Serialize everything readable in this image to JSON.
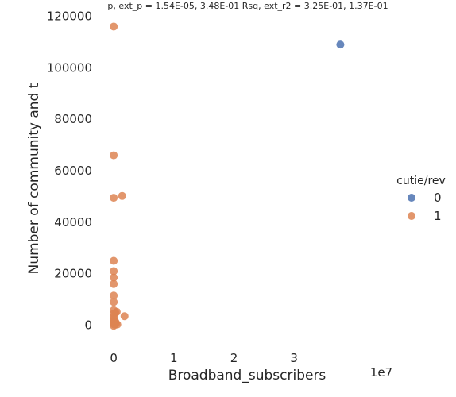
{
  "chart_data": {
    "type": "scatter",
    "title": "p, ext_p = 1.54E-05, 3.48E-01 Rsq, ext_r2 = 3.25E-01, 1.37E-01",
    "xlabel": "Broadband_subscribers",
    "ylabel": "Number of community and t",
    "x_offset_label": "1e7",
    "xlim": [
      -0.2,
      4.65
    ],
    "ylim": [
      -10000,
      122000
    ],
    "x_ticks": [
      0,
      1,
      2,
      3
    ],
    "x_tick_labels": [
      "0",
      "1",
      "2",
      "3"
    ],
    "y_ticks": [
      0,
      20000,
      40000,
      60000,
      80000,
      100000,
      120000
    ],
    "y_tick_labels": [
      "0",
      "20000",
      "40000",
      "60000",
      "80000",
      "100000",
      "120000"
    ],
    "grid": false,
    "legend": {
      "title": "cutie/rev",
      "placement": "right",
      "entries": [
        {
          "label": "0",
          "color": "#4c72b0"
        },
        {
          "label": "1",
          "color": "#dd8452"
        }
      ]
    },
    "series": [
      {
        "name": "0",
        "color": "#4c72b0",
        "points": [
          [
            3.77,
            109000
          ]
        ]
      },
      {
        "name": "1",
        "color": "#dd8452",
        "points": [
          [
            0.0,
            116000
          ],
          [
            0.0,
            66000
          ],
          [
            0.0,
            49500
          ],
          [
            0.14,
            50200
          ],
          [
            0.0,
            25000
          ],
          [
            0.0,
            21000
          ],
          [
            0.0,
            18500
          ],
          [
            0.0,
            16000
          ],
          [
            0.0,
            11500
          ],
          [
            0.0,
            9000
          ],
          [
            0.0,
            5800
          ],
          [
            0.05,
            5200
          ],
          [
            0.0,
            4500
          ],
          [
            0.03,
            4800
          ],
          [
            0.0,
            3300
          ],
          [
            0.18,
            3500
          ],
          [
            0.0,
            1800
          ],
          [
            0.01,
            1500
          ],
          [
            0.0,
            1000
          ],
          [
            0.04,
            700
          ],
          [
            0.0,
            400
          ],
          [
            0.02,
            200
          ],
          [
            0.0,
            -200
          ],
          [
            0.06,
            300
          ],
          [
            0.0,
            2500
          ],
          [
            0.03,
            1200
          ]
        ]
      }
    ]
  }
}
